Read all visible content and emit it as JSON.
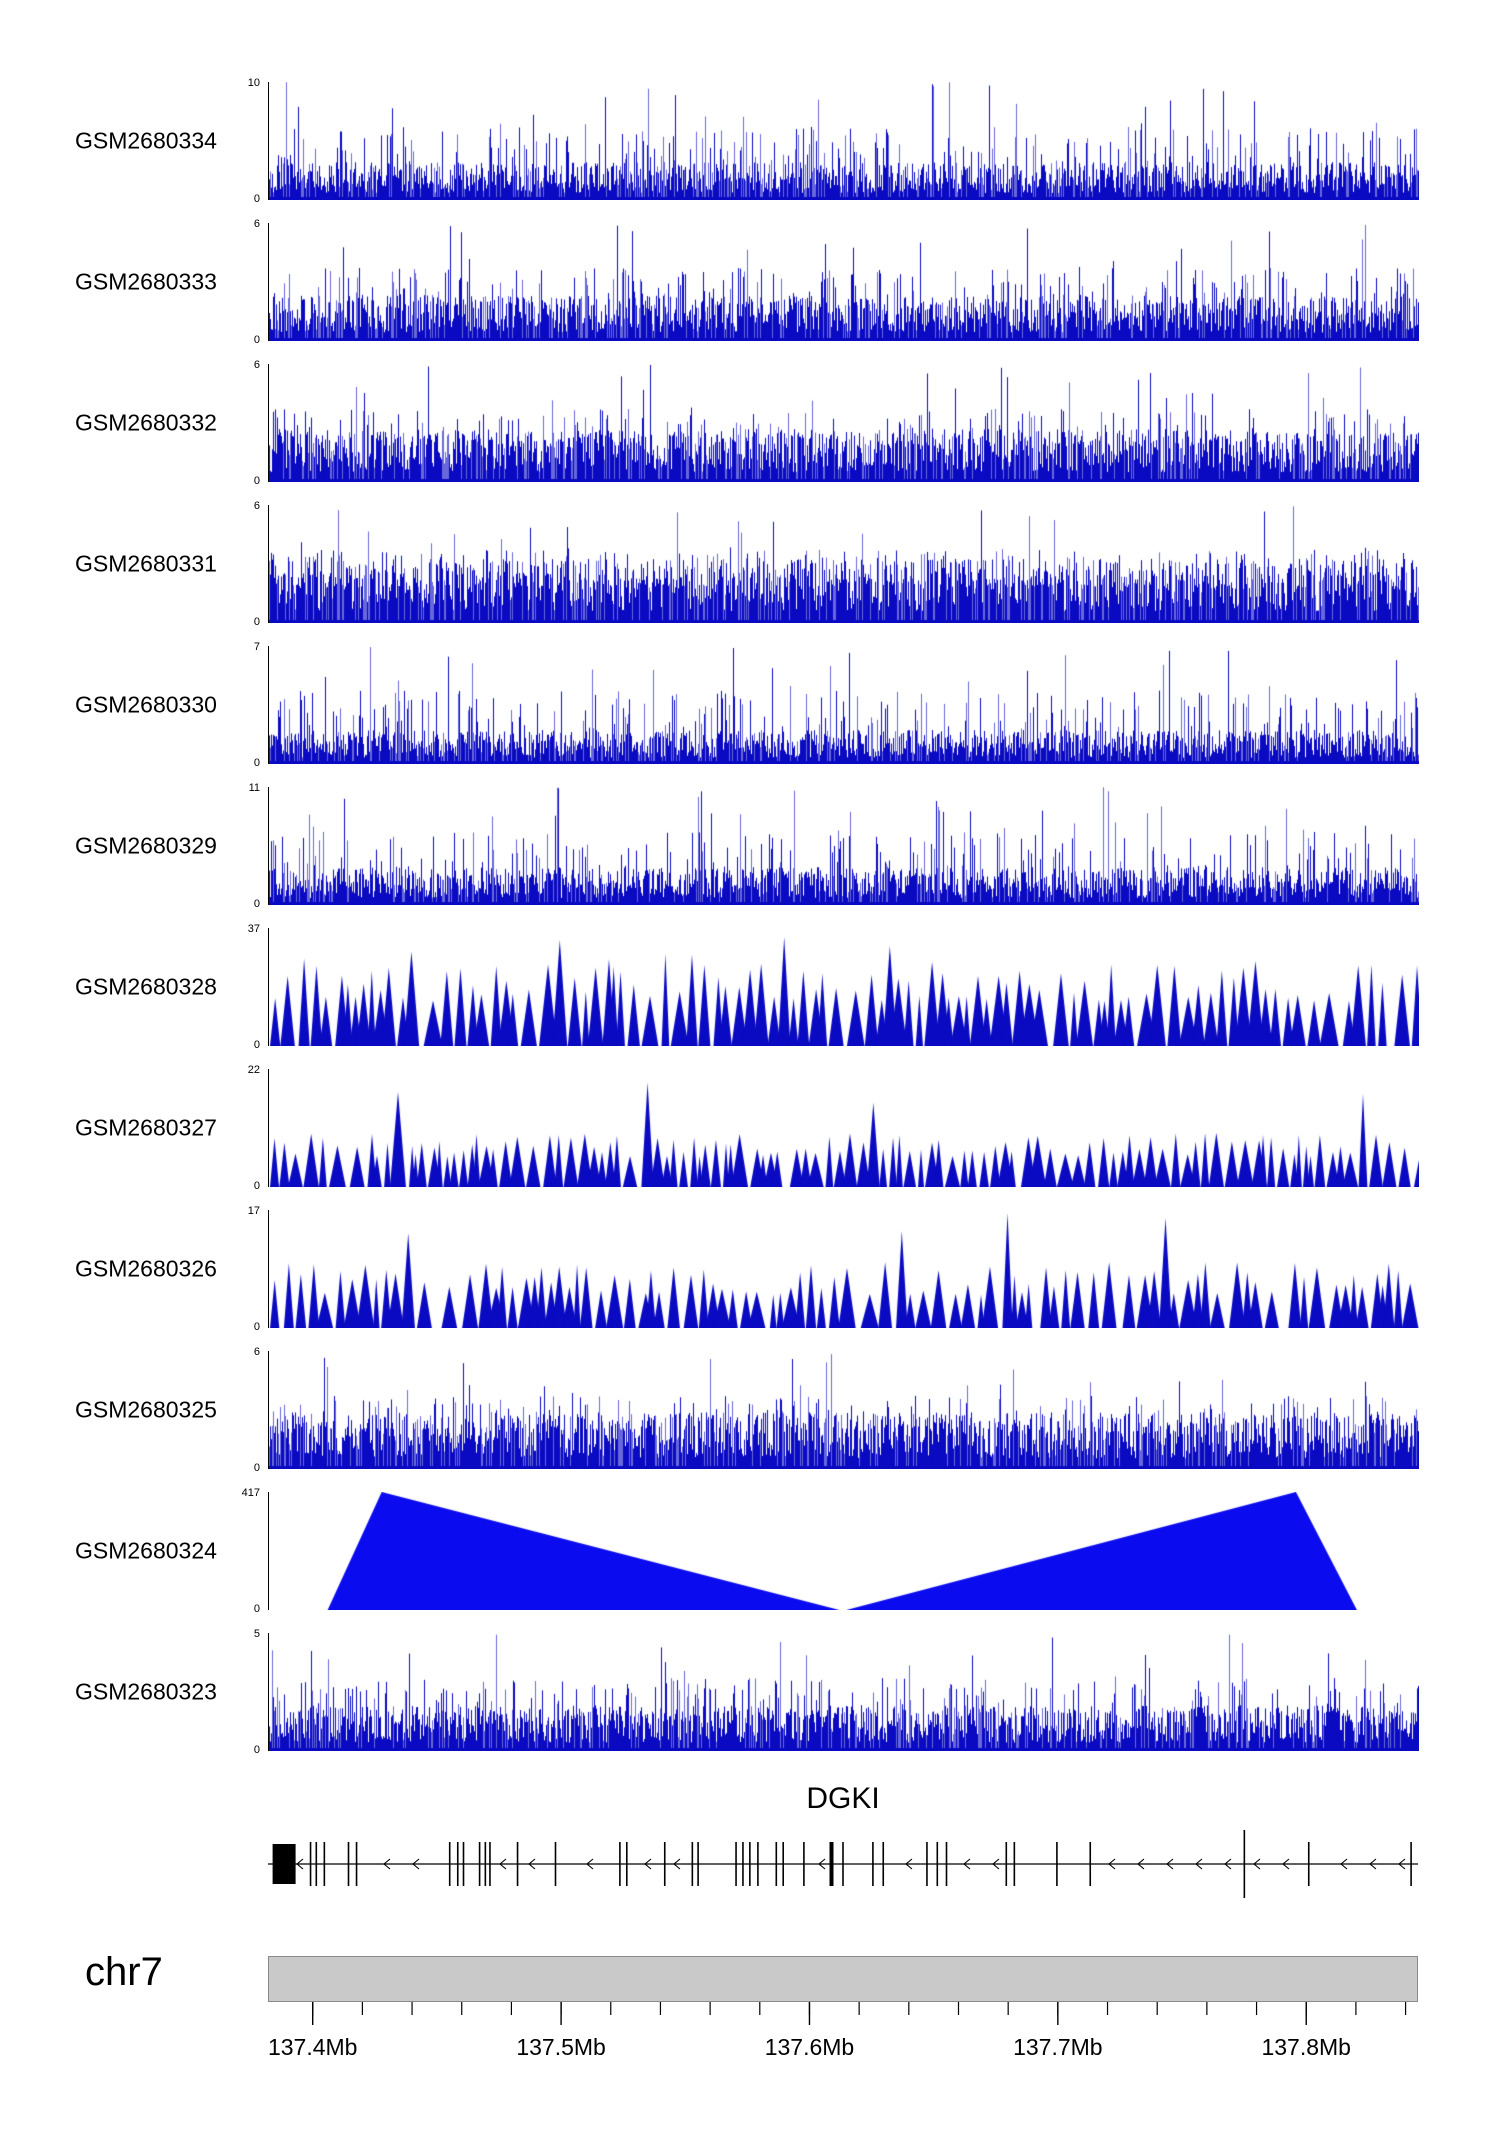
{
  "chart_data": {
    "type": "area",
    "subtype": "genomic-read-coverage-tracks",
    "title": "",
    "x_axis": {
      "chromosome": "chr7",
      "start_mb": 137.382,
      "end_mb": 137.845,
      "minor_tick_step_mb": 0.02,
      "major_ticks": [
        {
          "mb": 137.4,
          "label": "137.4Mb"
        },
        {
          "mb": 137.5,
          "label": "137.5Mb"
        },
        {
          "mb": 137.6,
          "label": "137.6Mb"
        },
        {
          "mb": 137.7,
          "label": "137.7Mb"
        },
        {
          "mb": 137.8,
          "label": "137.8Mb"
        }
      ]
    },
    "tracks": [
      {
        "name": "GSM2680334",
        "y_min": "0",
        "y_max": "10"
      },
      {
        "name": "GSM2680333",
        "y_min": "0",
        "y_max": "6"
      },
      {
        "name": "GSM2680332",
        "y_min": "0",
        "y_max": "6"
      },
      {
        "name": "GSM2680331",
        "y_min": "0",
        "y_max": "6"
      },
      {
        "name": "GSM2680330",
        "y_min": "0",
        "y_max": "7"
      },
      {
        "name": "GSM2680329",
        "y_min": "0",
        "y_max": "11"
      },
      {
        "name": "GSM2680328",
        "y_min": "0",
        "y_max": "37"
      },
      {
        "name": "GSM2680327",
        "y_min": "0",
        "y_max": "22"
      },
      {
        "name": "GSM2680326",
        "y_min": "0",
        "y_max": "17"
      },
      {
        "name": "GSM2680325",
        "y_min": "0",
        "y_max": "6"
      },
      {
        "name": "GSM2680324",
        "y_min": "0",
        "y_max": "417"
      },
      {
        "name": "GSM2680323",
        "y_min": "0",
        "y_max": "5"
      }
    ],
    "gene_annotation": {
      "name": "DGKI",
      "strand": "minus"
    }
  },
  "gene": {
    "title": "DGKI",
    "first_exon_box": {
      "x": 0.004,
      "w": 0.02
    },
    "exons": [
      0.037,
      0.042,
      0.049,
      0.07,
      0.077,
      0.158,
      0.165,
      0.17,
      0.184,
      0.189,
      0.193,
      0.217,
      0.25,
      0.306,
      0.312,
      0.345,
      0.369,
      0.374,
      0.407,
      0.413,
      0.419,
      0.426,
      0.442,
      0.448,
      0.466,
      0.49,
      0.5,
      0.526,
      0.535,
      0.573,
      0.582,
      0.59,
      0.642,
      0.649,
      0.686,
      0.715,
      0.849,
      0.905,
      0.994
    ],
    "thick_exons": [
      0.49
    ],
    "tall_exons": [
      0.849
    ]
  },
  "chromosome": {
    "label": "chr7"
  },
  "render": {
    "colors": {
      "dark": "#0a0ac2",
      "light": "#6868dc",
      "solid": "#0b0bef",
      "ideogram": "#c9c9c9"
    },
    "tracks": [
      {
        "style": "spiky",
        "seed": 101,
        "base": 0.2,
        "mid": 0.17,
        "high": 0.02
      },
      {
        "style": "spiky",
        "seed": 102,
        "base": 0.24,
        "mid": 0.2,
        "high": 0.015
      },
      {
        "style": "spiky",
        "seed": 103,
        "base": 0.28,
        "mid": 0.22,
        "high": 0.015
      },
      {
        "style": "spiky",
        "seed": 104,
        "base": 0.34,
        "mid": 0.3,
        "high": 0.02
      },
      {
        "style": "spiky",
        "seed": 105,
        "base": 0.18,
        "mid": 0.14,
        "high": 0.02
      },
      {
        "style": "spiky",
        "seed": 106,
        "base": 0.2,
        "mid": 0.15,
        "high": 0.025
      },
      {
        "style": "peaks",
        "seed": 107,
        "minw": 7,
        "maxw": 12,
        "base": 0.38,
        "spread": 0.32,
        "high": 0.09
      },
      {
        "style": "peaks",
        "seed": 108,
        "minw": 6,
        "maxw": 11,
        "base": 0.26,
        "spread": 0.2,
        "high": 0.03
      },
      {
        "style": "peaks",
        "seed": 109,
        "minw": 6,
        "maxw": 12,
        "base": 0.28,
        "spread": 0.28,
        "high": 0.05
      },
      {
        "style": "spiky",
        "seed": 110,
        "base": 0.3,
        "mid": 0.22,
        "high": 0.02
      },
      {
        "style": "polygons",
        "polys": [
          [
            [
              0.051,
              0
            ],
            [
              0.098,
              1
            ],
            [
              0.496,
              0
            ]
          ],
          [
            [
              0.502,
              0
            ],
            [
              0.893,
              1
            ],
            [
              0.946,
              0
            ]
          ]
        ]
      },
      {
        "style": "spiky",
        "seed": 112,
        "base": 0.24,
        "mid": 0.18,
        "high": 0.02
      }
    ]
  }
}
